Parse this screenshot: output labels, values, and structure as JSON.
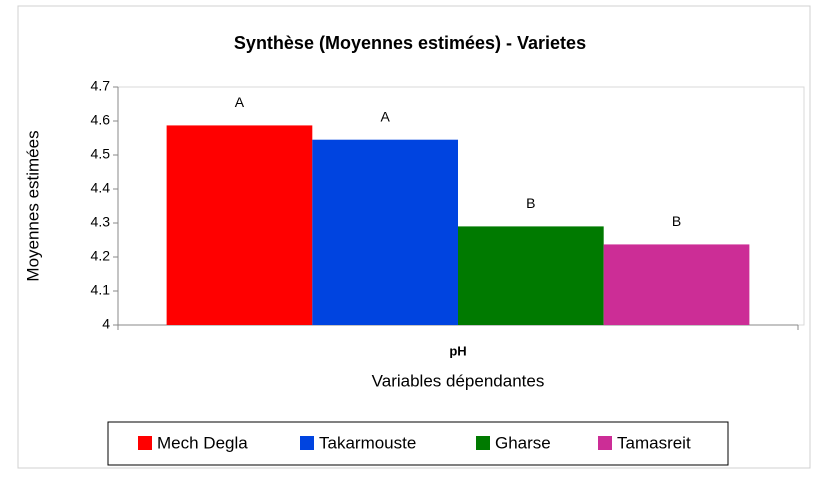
{
  "chart_data": {
    "type": "bar",
    "title": "Synthèse (Moyennes estimées) - Varietes",
    "y_label": "Moyennes estimées",
    "x_label": "Variables dépendantes",
    "categories": [
      "pH"
    ],
    "series": [
      {
        "name": "Mech Degla",
        "color": "#ff0000",
        "values": [
          4.587
        ],
        "annotation": "A"
      },
      {
        "name": "Takarmouste",
        "color": "#0044e0",
        "values": [
          4.545
        ],
        "annotation": "A"
      },
      {
        "name": "Gharse",
        "color": "#007a00",
        "values": [
          4.29
        ],
        "annotation": "B"
      },
      {
        "name": "Tamasreit",
        "color": "#cc2d96",
        "values": [
          4.237
        ],
        "annotation": "B"
      }
    ],
    "ylim": [
      4,
      4.7
    ],
    "yticks": [
      4,
      4.1,
      4.2,
      4.3,
      4.4,
      4.5,
      4.6,
      4.7
    ],
    "legend": "bottom"
  }
}
